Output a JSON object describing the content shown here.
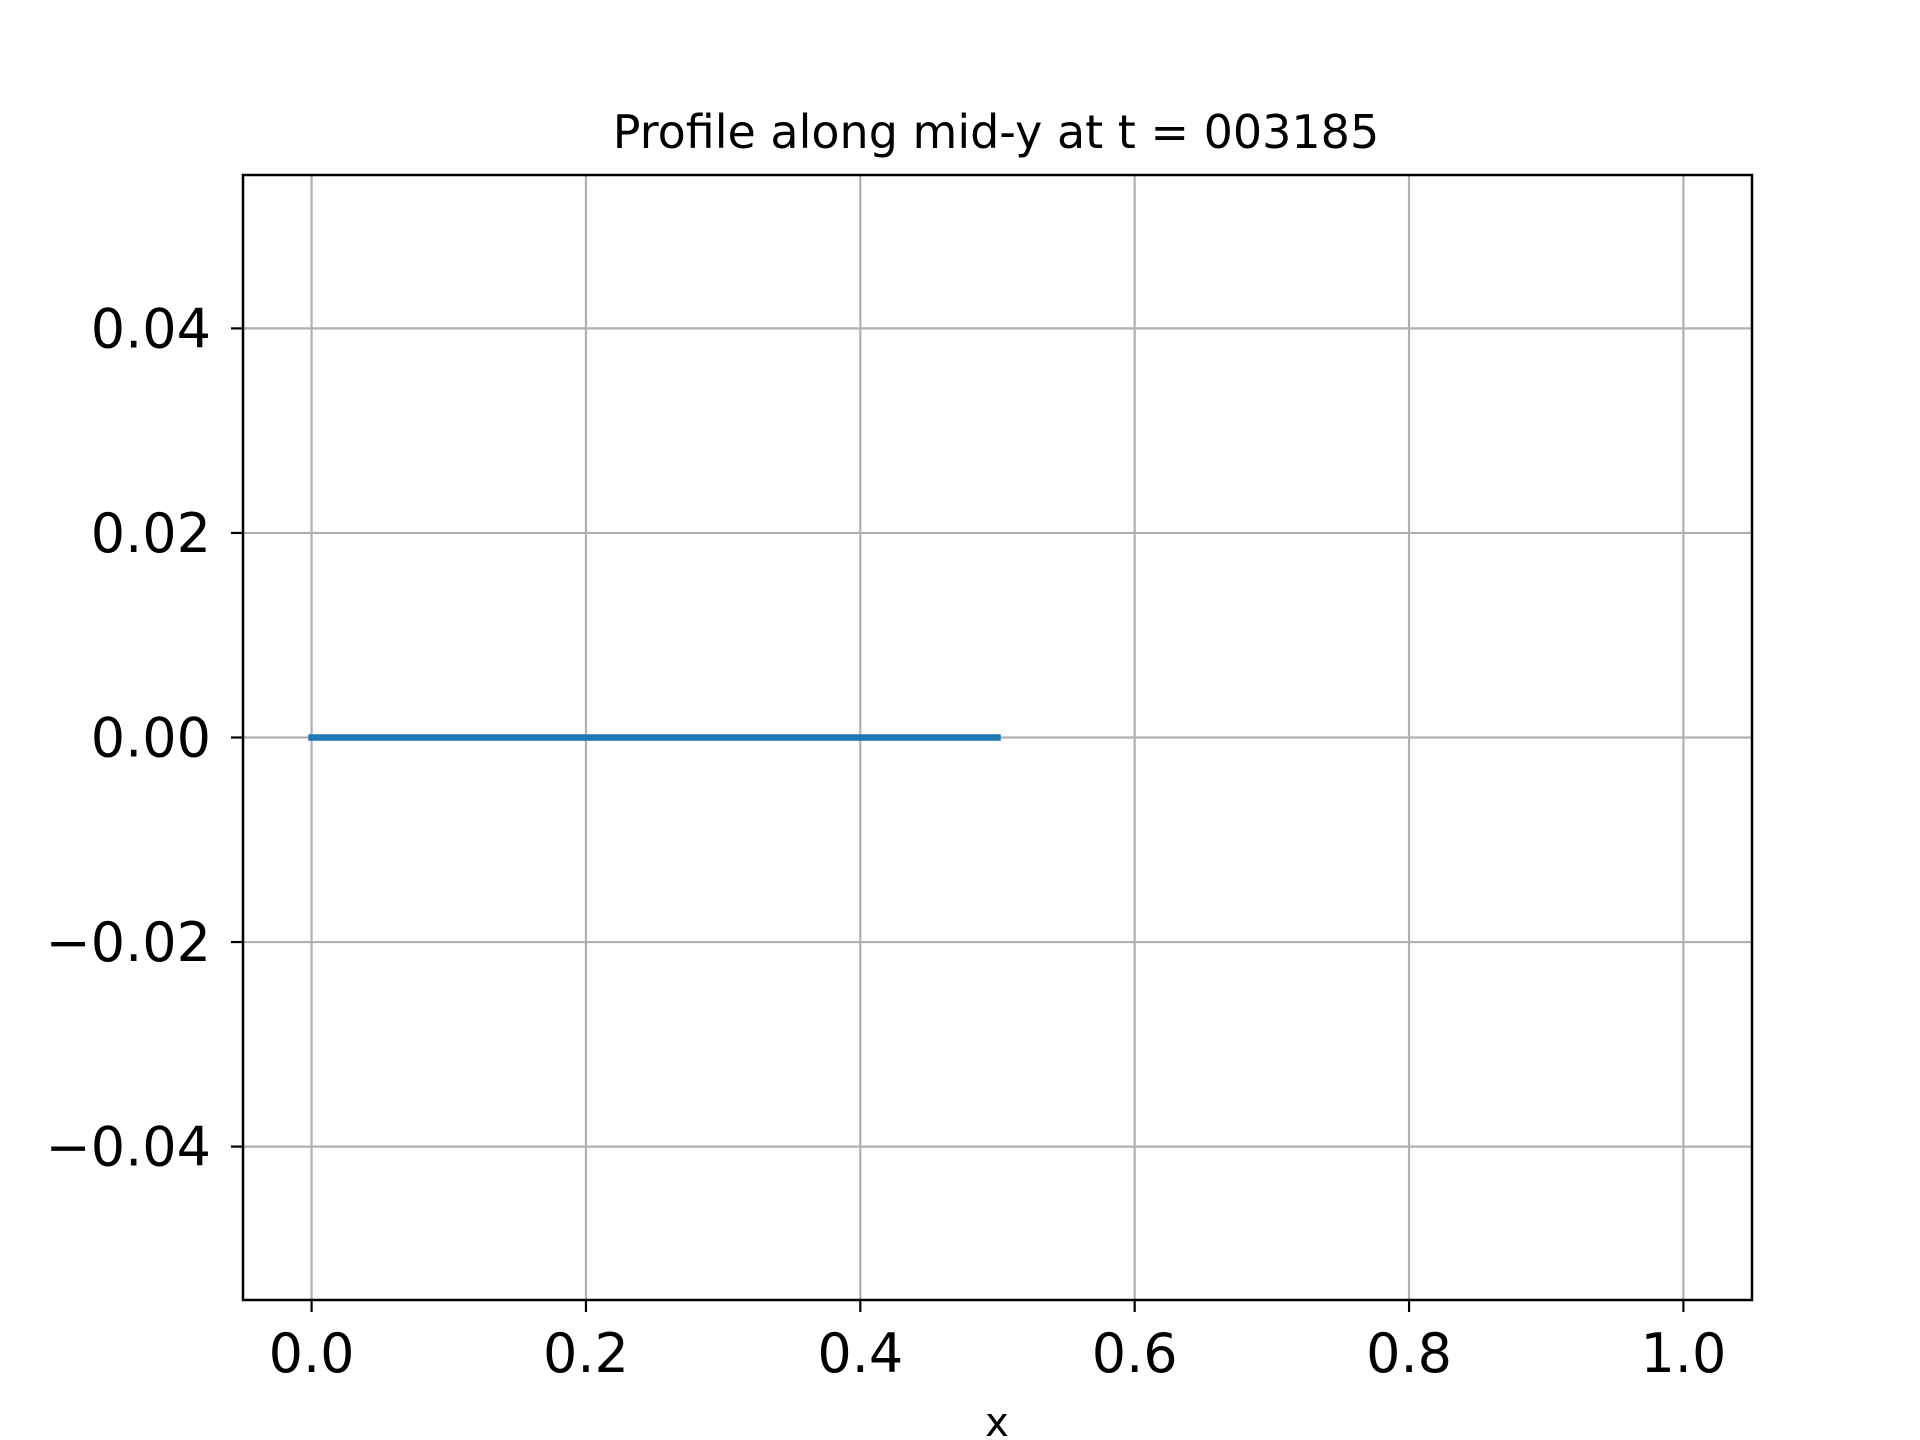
{
  "chart_data": {
    "type": "line",
    "title": "Profile along mid-y at t = 003185",
    "xlabel": "x",
    "ylabel": "",
    "xlim": [
      -0.05,
      1.05
    ],
    "ylim": [
      -0.055,
      0.055
    ],
    "x_ticks": [
      0.0,
      0.2,
      0.4,
      0.6,
      0.8,
      1.0
    ],
    "x_tick_labels": [
      "0.0",
      "0.2",
      "0.4",
      "0.6",
      "0.8",
      "1.0"
    ],
    "y_ticks": [
      0.04,
      0.02,
      0.0,
      -0.02,
      -0.04
    ],
    "y_tick_labels": [
      "0.04",
      "0.02",
      "0.00",
      "−0.02",
      "−0.04"
    ],
    "grid": true,
    "series": [
      {
        "color": "#1f77b4",
        "x": [
          0.0,
          0.5
        ],
        "y": [
          0.0,
          0.0
        ]
      }
    ]
  }
}
